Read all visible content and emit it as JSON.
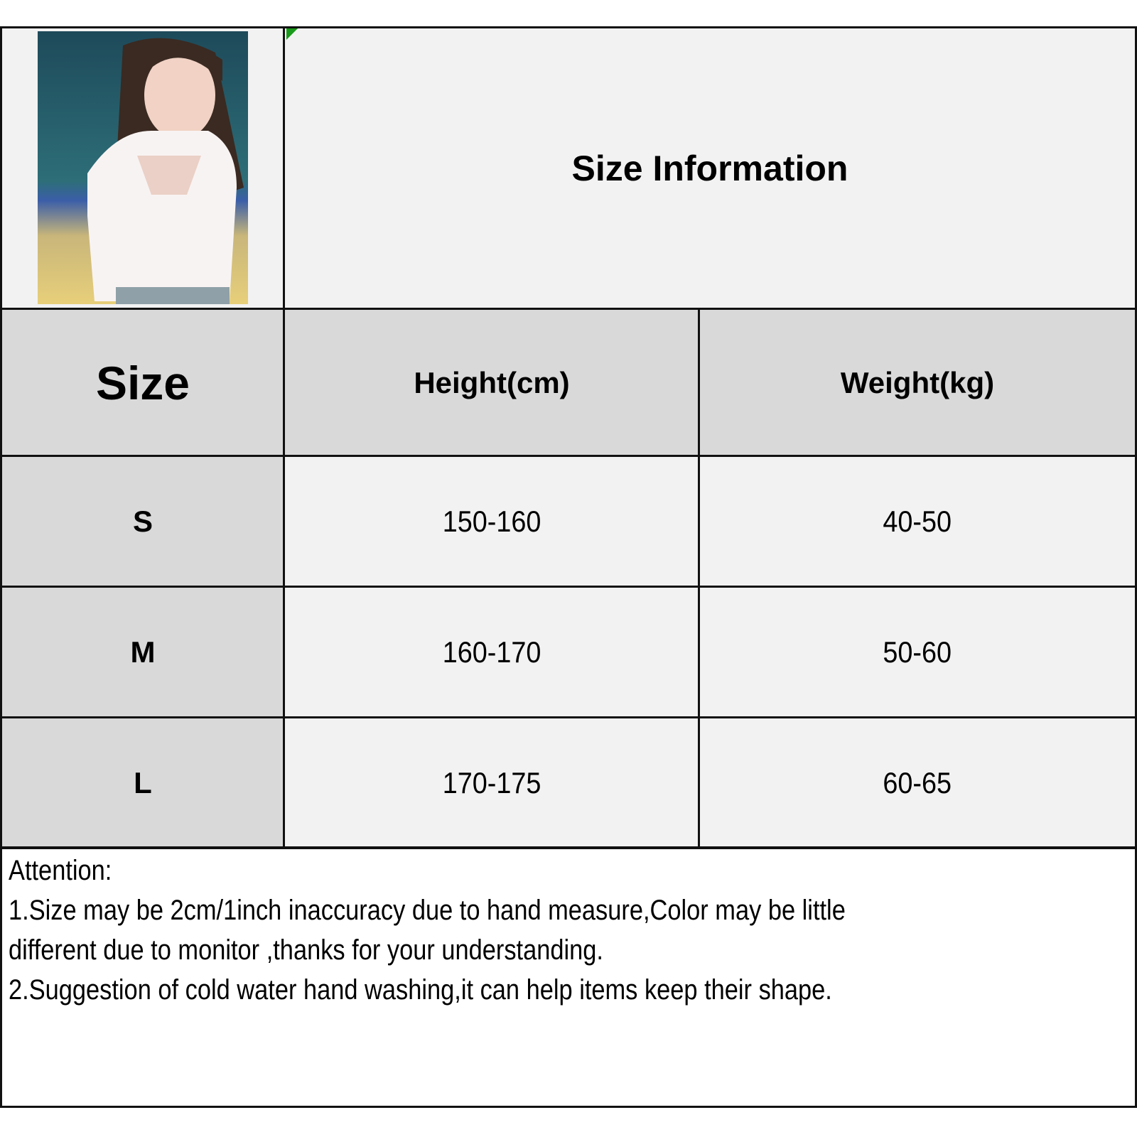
{
  "title": "Size Information",
  "photo": {
    "description_icon": "product-photo"
  },
  "table": {
    "headers": [
      "Size",
      "Height(cm)",
      "Weight(kg)"
    ],
    "rows": [
      {
        "size": "S",
        "height": "150-160",
        "weight": "40-50"
      },
      {
        "size": "M",
        "height": "160-170",
        "weight": "50-60"
      },
      {
        "size": "L",
        "height": "170-175",
        "weight": "60-65"
      }
    ]
  },
  "notes": {
    "heading": "Attention:",
    "line1": "1.Size may be 2cm/1inch inaccuracy due to hand measure,Color may be little",
    "line2": "different due to monitor ,thanks for your understanding.",
    "line3": "2.Suggestion of cold water hand washing,it can help items keep their shape."
  },
  "colors": {
    "header_bg": "#d9d9d9",
    "cell_bg": "#f2f2f2",
    "border": "#111111",
    "corner_marker": "#1a9a1a"
  }
}
